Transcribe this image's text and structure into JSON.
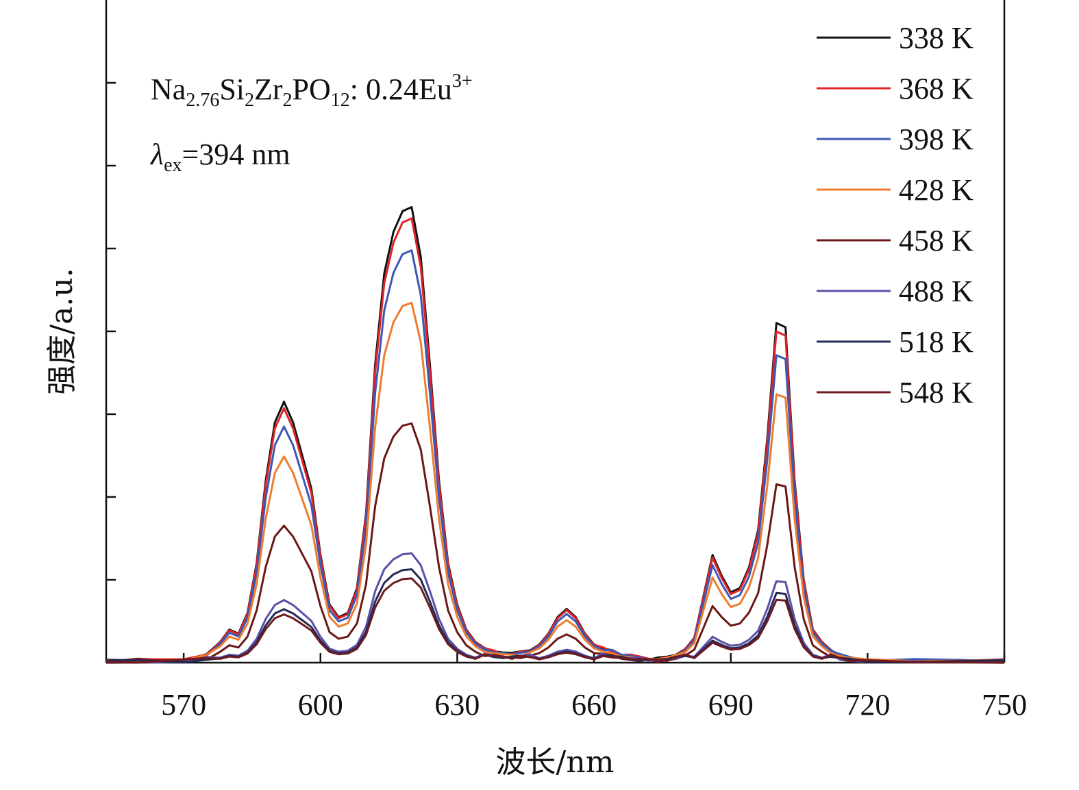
{
  "chart_data": {
    "type": "line",
    "xlabel": "波长/nm",
    "ylabel": "强度/a.u.",
    "xlim": [
      553,
      750
    ],
    "ylim": [
      0,
      8
    ],
    "x_ticks": [
      570,
      600,
      630,
      660,
      690,
      720,
      750
    ],
    "y_tick_values": [
      1,
      2,
      3,
      4,
      5,
      6,
      7
    ],
    "y_tick_labels_shown": false,
    "grid": false,
    "legend_position": "top-right",
    "annotations": {
      "compound": {
        "base": "Na",
        "sub1": "2.76",
        "part2": "Si",
        "sub2": "2",
        "part3": "Zr",
        "sub3": "2",
        "part4": "PO",
        "sub4": "12",
        "part5": ": 0.24Eu",
        "sup": "3+"
      },
      "excitation": {
        "symbol": "λ",
        "sub": "ex",
        "text": "=394 nm"
      }
    },
    "x": [
      553,
      560,
      570,
      575,
      578,
      580,
      582,
      584,
      586,
      588,
      590,
      592,
      594,
      596,
      598,
      600,
      602,
      604,
      606,
      608,
      610,
      612,
      614,
      616,
      618,
      620,
      622,
      624,
      626,
      628,
      630,
      632,
      634,
      636,
      638,
      640,
      642,
      644,
      646,
      648,
      650,
      652,
      654,
      656,
      658,
      660,
      662,
      664,
      666,
      668,
      670,
      672,
      674,
      676,
      678,
      680,
      682,
      684,
      686,
      688,
      690,
      692,
      694,
      696,
      698,
      700,
      702,
      704,
      706,
      708,
      710,
      712,
      714,
      716,
      720,
      730,
      740,
      750
    ],
    "base_profile": [
      0.03,
      0.03,
      0.04,
      0.1,
      0.25,
      0.4,
      0.35,
      0.6,
      1.2,
      2.2,
      2.9,
      3.15,
      2.9,
      2.5,
      2.1,
      1.3,
      0.7,
      0.55,
      0.6,
      0.9,
      1.8,
      3.6,
      4.7,
      5.2,
      5.45,
      5.5,
      4.9,
      3.6,
      2.2,
      1.2,
      0.7,
      0.4,
      0.25,
      0.18,
      0.15,
      0.12,
      0.1,
      0.12,
      0.15,
      0.22,
      0.35,
      0.55,
      0.65,
      0.55,
      0.35,
      0.22,
      0.18,
      0.15,
      0.1,
      0.08,
      0.06,
      0.05,
      0.05,
      0.07,
      0.1,
      0.15,
      0.3,
      0.8,
      1.3,
      1.05,
      0.85,
      0.9,
      1.15,
      1.6,
      2.7,
      4.1,
      4.05,
      2.2,
      1.0,
      0.4,
      0.25,
      0.15,
      0.1,
      0.06,
      0.03,
      0.03,
      0.03,
      0.03
    ],
    "series": [
      {
        "name": "338 K",
        "color": "#111111",
        "scale": 1.0
      },
      {
        "name": "368 K",
        "color": "#e0242a",
        "scale": 0.975
      },
      {
        "name": "398 K",
        "color": "#3a57b5",
        "scale": 0.905
      },
      {
        "name": "428 K",
        "color": "#ef7c2e",
        "scale": 0.79
      },
      {
        "name": "458 K",
        "color": "#6b1717",
        "scale": 0.525
      },
      {
        "name": "488 K",
        "color": "#5b4fa8",
        "scale": 0.24
      },
      {
        "name": "518 K",
        "color": "#232a52",
        "scale": 0.205
      },
      {
        "name": "548 K",
        "color": "#6e1a1f",
        "scale": 0.185
      }
    ]
  }
}
